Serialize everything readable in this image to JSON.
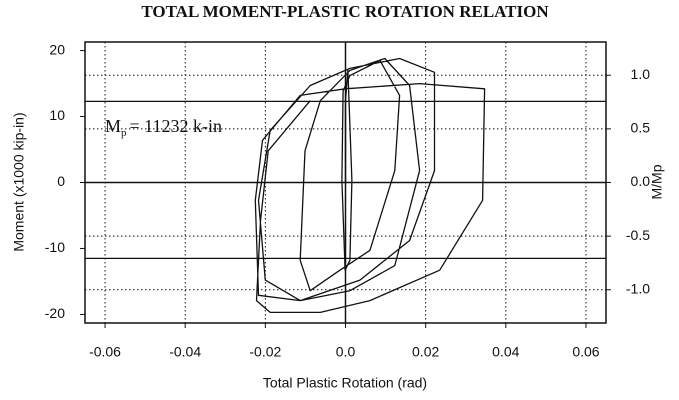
{
  "chart_data": {
    "type": "line",
    "title": "TOTAL MOMENT-PLASTIC ROTATION RELATION",
    "x_label": "Total Plastic Rotation (rad)",
    "y_label": "Moment (x1000 kip-in)",
    "y2_label": "M/Mp",
    "annotation": {
      "text": "M",
      "subscript": "p",
      "suffix": "= 11232 k-in"
    },
    "reference_lines": [
      12.3,
      -11.5
    ],
    "xlim": [
      -0.065,
      0.065
    ],
    "xticks": [
      -0.06,
      -0.04,
      -0.02,
      {
        "value": 0,
        "label": "0.0"
      },
      0.02,
      0.04,
      0.06
    ],
    "ylim": [
      -21.3,
      21.3
    ],
    "yticks": [
      20,
      10,
      0,
      -10,
      -20
    ],
    "y2lim": [
      -1.31,
      1.31
    ],
    "y2ticks": [
      {
        "value": 1,
        "label": "1.0"
      },
      {
        "value": 0.5,
        "label": "0.5"
      },
      {
        "value": 0,
        "label": "0.0"
      },
      {
        "value": -0.5,
        "label": "-0.5"
      },
      {
        "value": -1,
        "label": "-1.0"
      }
    ],
    "grid": true,
    "series": [
      {
        "color": "#111111",
        "x": [
          0.0,
          0.0,
          0.0006,
          0.0016,
          0.0011,
          -0.0001,
          -0.0009,
          -0.0006,
          0.0011,
          0.0086,
          0.0135,
          0.0123,
          0.0061,
          -0.0014,
          -0.0088,
          -0.0113,
          -0.0101,
          -0.0063,
          0.0011,
          0.0098,
          0.016,
          0.0185,
          0.0123,
          0.0011,
          -0.0113,
          -0.02,
          -0.0217,
          -0.0188,
          -0.0088,
          0.0011,
          0.0135,
          0.0222,
          0.0222,
          0.016,
          0.0036,
          -0.0113,
          -0.0217,
          -0.0225,
          -0.0207,
          -0.0113,
          -0.0001,
          0.0185,
          0.0347,
          0.0342,
          0.0235,
          0.0061,
          -0.0063,
          -0.0188,
          -0.0222,
          -0.0212,
          -0.0193,
          -0.0088
        ],
        "values": [
          0,
          12.4,
          17.0,
          0.3,
          -11.8,
          -13.3,
          0.3,
          13.9,
          16.2,
          18.5,
          13.2,
          1.8,
          -10.3,
          -13.3,
          -16.4,
          -11.8,
          4.8,
          12.4,
          17.0,
          18.8,
          14.7,
          1.8,
          -12.6,
          -16.4,
          -17.9,
          -14.8,
          -2.7,
          7.9,
          14.7,
          17.3,
          18.8,
          16.7,
          1.8,
          -8.8,
          -14.8,
          -17.9,
          -17.1,
          -2.7,
          6.4,
          13.2,
          14.2,
          15.0,
          14.2,
          -2.7,
          -13.3,
          -17.9,
          -19.7,
          -19.7,
          -17.9,
          -5.8,
          4.8,
          12.4
        ]
      }
    ]
  }
}
